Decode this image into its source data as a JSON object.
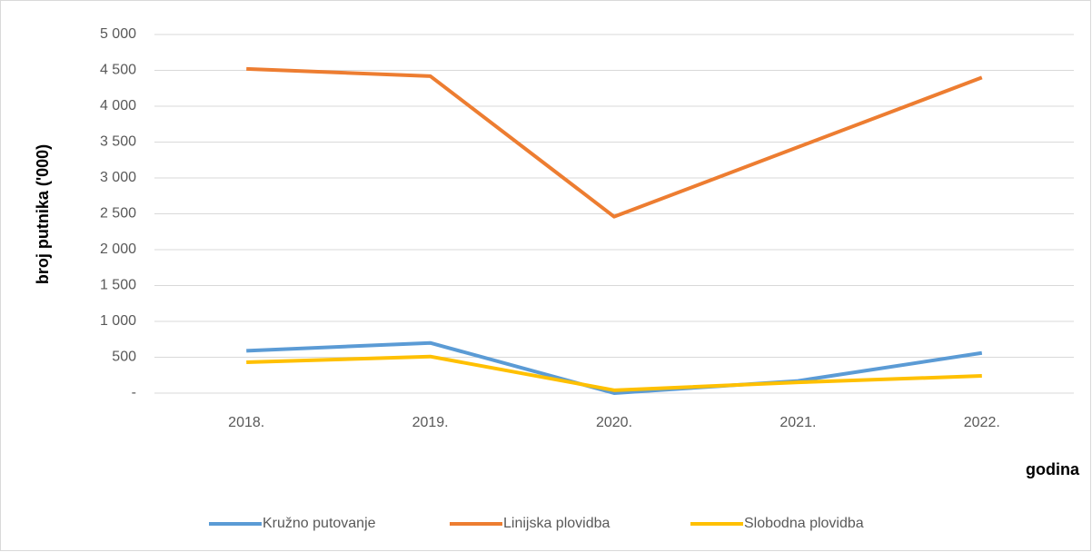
{
  "chart_data": {
    "type": "line",
    "y_label": "broj putnika ('000)",
    "x_label": "godina",
    "categories": [
      "2018.",
      "2019.",
      "2020.",
      "2021.",
      "2022."
    ],
    "series": [
      {
        "name": "Kružno putovanje",
        "color": "#5b9bd5",
        "values": [
          590,
          700,
          0,
          170,
          560
        ]
      },
      {
        "name": "Linijska plovidba",
        "color": "#ed7d31",
        "values": [
          4520,
          4420,
          2460,
          3430,
          4400
        ]
      },
      {
        "name": "Slobodna plovidba",
        "color": "#ffc000",
        "values": [
          430,
          510,
          40,
          150,
          240
        ]
      }
    ],
    "ylim": [
      0,
      5000
    ],
    "yticks": [
      {
        "value": 0,
        "label": "-"
      },
      500,
      {
        "value": 1000,
        "label": "1 000"
      },
      {
        "value": 1500,
        "label": "1 500"
      },
      {
        "value": 2000,
        "label": "2 000"
      },
      {
        "value": 2500,
        "label": "2 500"
      },
      {
        "value": 3000,
        "label": "3 000"
      },
      {
        "value": 3500,
        "label": "3 500"
      },
      {
        "value": 4000,
        "label": "4 000"
      },
      {
        "value": 4500,
        "label": "4 500"
      },
      {
        "value": 5000,
        "label": "5 000"
      }
    ],
    "grid": true,
    "legend": "bottom"
  }
}
